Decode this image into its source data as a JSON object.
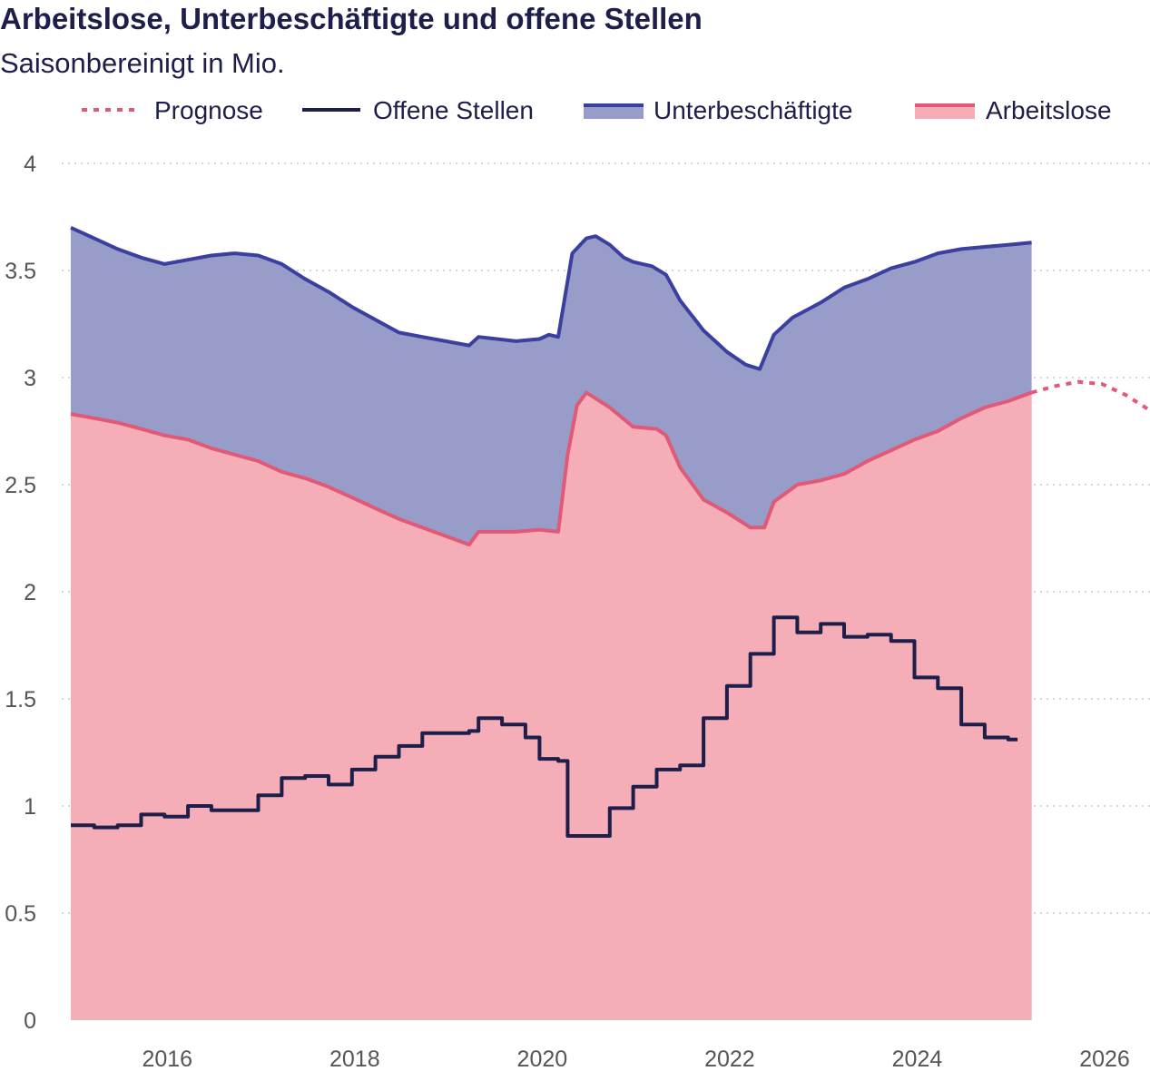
{
  "chart_data": {
    "type": "area",
    "title": "Arbeitslose, Unterbeschäftigte und offene Stellen",
    "subtitle": "Saisonbereinigt in Mio.",
    "ylim": [
      0,
      4
    ],
    "xlim": [
      2015.0,
      2026.3
    ],
    "y_ticks": [
      {
        "value": 0,
        "label": "0"
      },
      {
        "value": 0.5,
        "label": "0.5"
      },
      {
        "value": 1,
        "label": "1"
      },
      {
        "value": 1.5,
        "label": "1.5"
      },
      {
        "value": 2,
        "label": "2"
      },
      {
        "value": 2.5,
        "label": "2.5"
      },
      {
        "value": 3,
        "label": "3"
      },
      {
        "value": 3.5,
        "label": "3.5"
      },
      {
        "value": 4,
        "label": "4"
      }
    ],
    "x_ticks": [
      {
        "value": 2016,
        "label": "2016"
      },
      {
        "value": 2018,
        "label": "2018"
      },
      {
        "value": 2020,
        "label": "2020"
      },
      {
        "value": 2022,
        "label": "2022"
      },
      {
        "value": 2024,
        "label": "2024"
      },
      {
        "value": 2026,
        "label": "2026"
      }
    ],
    "grid": true,
    "legend_position": "top",
    "legend": [
      {
        "key": "prognose",
        "label": "Prognose",
        "style": "dotted",
        "color": "#e05a78"
      },
      {
        "key": "offene_stellen",
        "label": "Offene Stellen",
        "style": "line",
        "color": "#1e1e4b"
      },
      {
        "key": "unterbeschaeftigte",
        "label": "Unterbeschäftigte",
        "style": "area",
        "color": "#3b40a0",
        "fill": "#989cc8"
      },
      {
        "key": "arbeitslose",
        "label": "Arbeitslose",
        "style": "area",
        "color": "#e05a78",
        "fill": "#f5adb8"
      }
    ],
    "series": {
      "unterbeschaeftigte": [
        [
          2015.0,
          3.7
        ],
        [
          2015.25,
          3.65
        ],
        [
          2015.5,
          3.6
        ],
        [
          2015.75,
          3.56
        ],
        [
          2016.0,
          3.53
        ],
        [
          2016.25,
          3.55
        ],
        [
          2016.5,
          3.57
        ],
        [
          2016.75,
          3.58
        ],
        [
          2017.0,
          3.57
        ],
        [
          2017.25,
          3.53
        ],
        [
          2017.5,
          3.46
        ],
        [
          2017.75,
          3.4
        ],
        [
          2018.0,
          3.33
        ],
        [
          2018.25,
          3.27
        ],
        [
          2018.5,
          3.21
        ],
        [
          2018.75,
          3.19
        ],
        [
          2019.0,
          3.17
        ],
        [
          2019.25,
          3.15
        ],
        [
          2019.35,
          3.19
        ],
        [
          2019.75,
          3.17
        ],
        [
          2020.0,
          3.18
        ],
        [
          2020.1,
          3.2
        ],
        [
          2020.2,
          3.19
        ],
        [
          2020.35,
          3.58
        ],
        [
          2020.5,
          3.65
        ],
        [
          2020.6,
          3.66
        ],
        [
          2020.75,
          3.62
        ],
        [
          2020.9,
          3.56
        ],
        [
          2021.0,
          3.54
        ],
        [
          2021.2,
          3.52
        ],
        [
          2021.35,
          3.48
        ],
        [
          2021.5,
          3.36
        ],
        [
          2021.75,
          3.22
        ],
        [
          2022.0,
          3.12
        ],
        [
          2022.2,
          3.06
        ],
        [
          2022.35,
          3.04
        ],
        [
          2022.5,
          3.2
        ],
        [
          2022.7,
          3.28
        ],
        [
          2023.0,
          3.35
        ],
        [
          2023.25,
          3.42
        ],
        [
          2023.5,
          3.46
        ],
        [
          2023.75,
          3.51
        ],
        [
          2024.0,
          3.54
        ],
        [
          2024.25,
          3.58
        ],
        [
          2024.5,
          3.6
        ],
        [
          2024.75,
          3.61
        ],
        [
          2025.0,
          3.62
        ],
        [
          2025.25,
          3.63
        ]
      ],
      "arbeitslose": [
        [
          2015.0,
          2.83
        ],
        [
          2015.25,
          2.81
        ],
        [
          2015.5,
          2.79
        ],
        [
          2015.75,
          2.76
        ],
        [
          2016.0,
          2.73
        ],
        [
          2016.25,
          2.71
        ],
        [
          2016.5,
          2.67
        ],
        [
          2016.75,
          2.64
        ],
        [
          2017.0,
          2.61
        ],
        [
          2017.25,
          2.56
        ],
        [
          2017.5,
          2.53
        ],
        [
          2017.75,
          2.49
        ],
        [
          2018.0,
          2.44
        ],
        [
          2018.25,
          2.39
        ],
        [
          2018.5,
          2.34
        ],
        [
          2018.75,
          2.3
        ],
        [
          2019.0,
          2.26
        ],
        [
          2019.25,
          2.22
        ],
        [
          2019.35,
          2.28
        ],
        [
          2019.75,
          2.28
        ],
        [
          2020.0,
          2.29
        ],
        [
          2020.2,
          2.28
        ],
        [
          2020.3,
          2.64
        ],
        [
          2020.4,
          2.87
        ],
        [
          2020.5,
          2.93
        ],
        [
          2020.75,
          2.86
        ],
        [
          2021.0,
          2.77
        ],
        [
          2021.25,
          2.76
        ],
        [
          2021.35,
          2.73
        ],
        [
          2021.5,
          2.58
        ],
        [
          2021.75,
          2.43
        ],
        [
          2022.0,
          2.37
        ],
        [
          2022.25,
          2.3
        ],
        [
          2022.4,
          2.3
        ],
        [
          2022.5,
          2.42
        ],
        [
          2022.75,
          2.5
        ],
        [
          2023.0,
          2.52
        ],
        [
          2023.25,
          2.55
        ],
        [
          2023.5,
          2.61
        ],
        [
          2023.75,
          2.66
        ],
        [
          2024.0,
          2.71
        ],
        [
          2024.25,
          2.75
        ],
        [
          2024.5,
          2.81
        ],
        [
          2024.75,
          2.86
        ],
        [
          2025.0,
          2.89
        ],
        [
          2025.25,
          2.93
        ]
      ],
      "offene_stellen": [
        [
          2015.0,
          0.91
        ],
        [
          2015.25,
          0.9
        ],
        [
          2015.5,
          0.91
        ],
        [
          2015.75,
          0.96
        ],
        [
          2016.0,
          0.95
        ],
        [
          2016.25,
          1.0
        ],
        [
          2016.5,
          0.98
        ],
        [
          2016.75,
          0.98
        ],
        [
          2017.0,
          1.05
        ],
        [
          2017.25,
          1.13
        ],
        [
          2017.5,
          1.14
        ],
        [
          2017.75,
          1.1
        ],
        [
          2018.0,
          1.17
        ],
        [
          2018.25,
          1.23
        ],
        [
          2018.5,
          1.28
        ],
        [
          2018.75,
          1.34
        ],
        [
          2019.0,
          1.34
        ],
        [
          2019.25,
          1.35
        ],
        [
          2019.35,
          1.41
        ],
        [
          2019.6,
          1.38
        ],
        [
          2019.85,
          1.32
        ],
        [
          2020.0,
          1.22
        ],
        [
          2020.2,
          1.21
        ],
        [
          2020.3,
          0.86
        ],
        [
          2020.5,
          0.86
        ],
        [
          2020.75,
          0.99
        ],
        [
          2021.0,
          1.09
        ],
        [
          2021.25,
          1.17
        ],
        [
          2021.5,
          1.19
        ],
        [
          2021.75,
          1.41
        ],
        [
          2022.0,
          1.56
        ],
        [
          2022.25,
          1.71
        ],
        [
          2022.5,
          1.88
        ],
        [
          2022.75,
          1.81
        ],
        [
          2023.0,
          1.85
        ],
        [
          2023.25,
          1.79
        ],
        [
          2023.5,
          1.8
        ],
        [
          2023.75,
          1.77
        ],
        [
          2024.0,
          1.6
        ],
        [
          2024.25,
          1.55
        ],
        [
          2024.5,
          1.38
        ],
        [
          2024.75,
          1.32
        ],
        [
          2025.0,
          1.31
        ],
        [
          2025.1,
          1.31
        ]
      ],
      "prognose": [
        [
          2025.25,
          2.93
        ],
        [
          2025.5,
          2.96
        ],
        [
          2025.75,
          2.98
        ],
        [
          2026.0,
          2.97
        ],
        [
          2026.25,
          2.92
        ],
        [
          2026.5,
          2.85
        ]
      ]
    }
  }
}
